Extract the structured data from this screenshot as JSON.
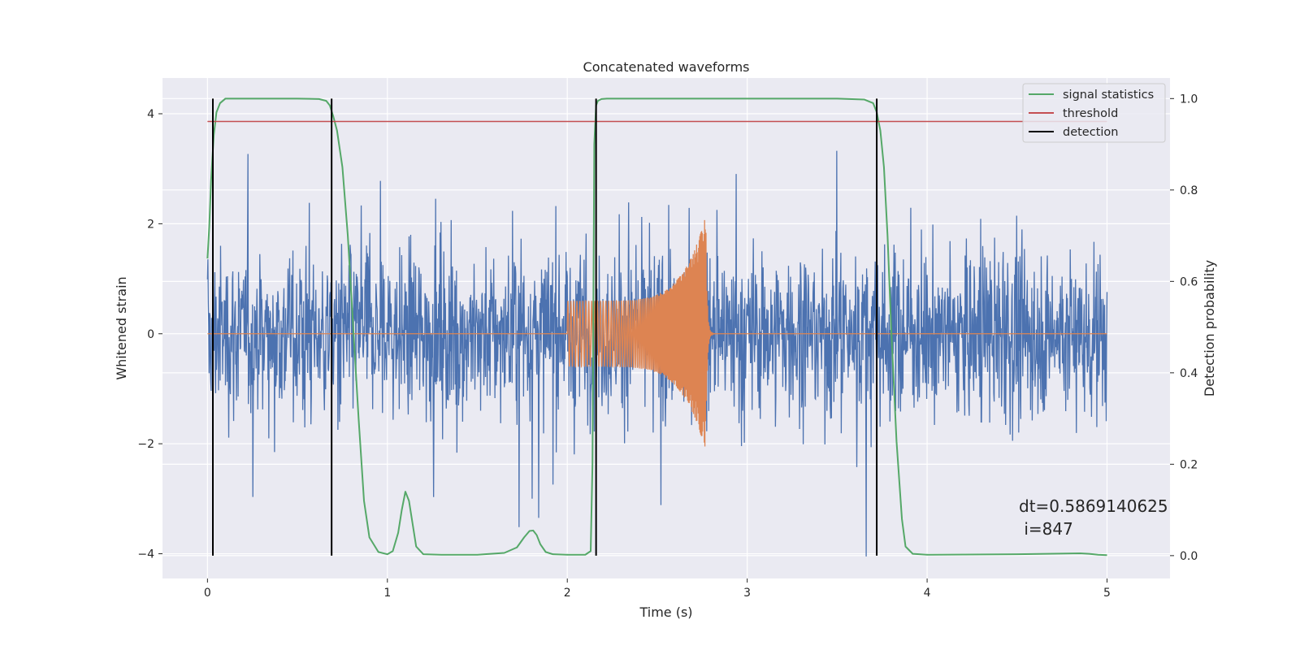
{
  "chart_data": {
    "type": "line",
    "title": "Concatenated waveforms",
    "xlabel": "Time (s)",
    "ylabel": "Whitened strain",
    "ylabel_right": "Detection probability",
    "xlim": [
      -0.25,
      5.35
    ],
    "ylim": [
      -4.45,
      4.65
    ],
    "ylim_right": [
      -0.05,
      1.045
    ],
    "xticks": [
      0,
      1,
      2,
      3,
      4,
      5
    ],
    "yticks": [
      -4,
      -2,
      0,
      2,
      4
    ],
    "yticks_right": [
      0.0,
      0.2,
      0.4,
      0.6,
      0.8,
      1.0
    ],
    "xtick_labels": [
      "0",
      "1",
      "2",
      "3",
      "4",
      "5"
    ],
    "ytick_labels": [
      "−4",
      "−2",
      "0",
      "2",
      "4"
    ],
    "ytick_right_labels": [
      "0.0",
      "0.2",
      "0.4",
      "0.6",
      "0.8",
      "1.0"
    ],
    "grid": true,
    "legend_position": "top-right",
    "colors": {
      "background": "#eaeaf2",
      "grid": "#ffffff",
      "strain": "#4c72b0",
      "injection": "#dd8452",
      "signal_statistics": "#55a868",
      "threshold": "#c44e52",
      "detection": "#000000"
    },
    "series": [
      {
        "name": "strain",
        "axis": "left",
        "kind": "noise",
        "x_range": [
          0,
          5
        ],
        "typical_amplitude": 1.3,
        "peak_range": [
          -4.05,
          4.2
        ]
      },
      {
        "name": "injection",
        "axis": "left",
        "kind": "chirp",
        "x_range": [
          2.0,
          2.77
        ],
        "amplitude_start": 0.6,
        "amplitude_peak": 2.15,
        "amplitude_min": -2.65
      },
      {
        "name": "signal statistics",
        "axis": "right",
        "x": [
          0,
          0.01,
          0.02,
          0.035,
          0.05,
          0.07,
          0.1,
          0.15,
          0.3,
          0.5,
          0.62,
          0.66,
          0.68,
          0.7,
          0.72,
          0.75,
          0.78,
          0.81,
          0.84,
          0.87,
          0.9,
          0.95,
          1.0,
          1.03,
          1.06,
          1.08,
          1.1,
          1.12,
          1.14,
          1.16,
          1.2,
          1.3,
          1.5,
          1.65,
          1.72,
          1.76,
          1.79,
          1.81,
          1.83,
          1.85,
          1.88,
          1.92,
          2.0,
          2.1,
          2.13,
          2.14,
          2.15,
          2.16,
          2.17,
          2.19,
          2.22,
          2.3,
          2.6,
          3.0,
          3.5,
          3.65,
          3.7,
          3.72,
          3.74,
          3.76,
          3.78,
          3.8,
          3.83,
          3.86,
          3.88,
          3.92,
          4.0,
          4.5,
          4.85,
          4.9,
          4.95,
          5.0
        ],
        "y": [
          0.65,
          0.72,
          0.82,
          0.92,
          0.97,
          0.99,
          1.0,
          1.0,
          1.0,
          1.0,
          0.999,
          0.995,
          0.985,
          0.96,
          0.93,
          0.85,
          0.7,
          0.5,
          0.3,
          0.12,
          0.04,
          0.008,
          0.003,
          0.01,
          0.05,
          0.1,
          0.14,
          0.12,
          0.07,
          0.02,
          0.003,
          0.002,
          0.002,
          0.006,
          0.018,
          0.04,
          0.054,
          0.055,
          0.045,
          0.025,
          0.008,
          0.003,
          0.002,
          0.002,
          0.01,
          0.2,
          0.9,
          0.985,
          0.995,
          0.999,
          1.0,
          1.0,
          1.0,
          1.0,
          1.0,
          0.998,
          0.99,
          0.97,
          0.93,
          0.85,
          0.7,
          0.5,
          0.25,
          0.08,
          0.02,
          0.004,
          0.002,
          0.003,
          0.005,
          0.004,
          0.002,
          0.001
        ]
      },
      {
        "name": "threshold",
        "axis": "right",
        "x": [
          0,
          5
        ],
        "y": [
          0.95,
          0.95
        ]
      },
      {
        "name": "detection",
        "axis": "right",
        "kind": "vertical-lines",
        "x": [
          0.03,
          0.69,
          2.16,
          3.72
        ],
        "y_range": [
          0.0,
          1.0
        ]
      }
    ],
    "legend": [
      "signal statistics",
      "threshold",
      "detection"
    ],
    "annotations": [
      "dt=0.5869140625",
      " i=847"
    ]
  }
}
